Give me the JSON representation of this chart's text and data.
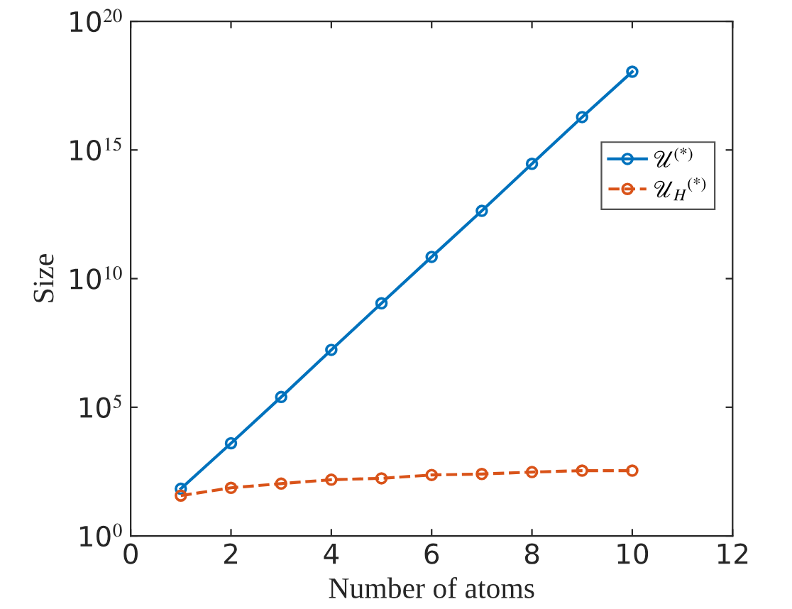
{
  "chart_data": {
    "type": "line",
    "xlabel": "Number of atoms",
    "ylabel": "Size",
    "x": [
      1,
      2,
      3,
      4,
      5,
      6,
      7,
      8,
      9,
      10
    ],
    "series": [
      {
        "name": "𝒰$^{(*)}$",
        "color": "#0072bd",
        "line_style": "solid",
        "values": [
          68,
          4000,
          250000,
          17000000,
          1100000000,
          70000000000,
          4300000000000,
          290000000000000,
          19000000000000000,
          1100000000000000000
        ]
      },
      {
        "name": "𝒰$_{H}$$^{(*)}$",
        "color": "#d95319",
        "line_style": "dashed",
        "values": [
          37,
          74,
          108,
          153,
          173,
          234,
          255,
          303,
          345,
          345
        ]
      }
    ],
    "log": "y",
    "marker": "circle",
    "legend": "right",
    "grid": false,
    "xlim": [
      0,
      12
    ],
    "xticks": [
      0,
      2,
      4,
      6,
      8,
      10,
      12
    ],
    "ylim": [
      1,
      1e+20
    ],
    "yticks": [
      {
        "value": 1,
        "label": "10$^{0}$"
      },
      {
        "value": 100000,
        "label": "10$^{5}$"
      },
      {
        "value": 10000000000,
        "label": "10$^{10}$"
      },
      {
        "value": 1000000000000000,
        "label": "10$^{15}$"
      },
      {
        "value": 1e+20,
        "label": "10$^{20}$"
      }
    ]
  }
}
